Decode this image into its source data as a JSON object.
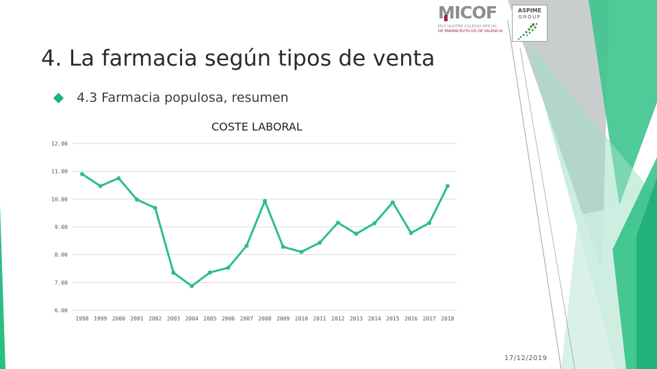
{
  "slide": {
    "title": "4. La farmacia según tipos de venta",
    "subtitle": "4.3 Farmacia populosa, resumen",
    "date": "17/12/2019"
  },
  "logos": {
    "micof": {
      "name": "MICOF",
      "line1": "MUY ILUSTRE COLEGIO OFICIAL",
      "line2": "DE FARMACÉUTICOS DE VALENCIA"
    },
    "aspime": {
      "name": "ASPIME",
      "group": "GROUP"
    }
  },
  "colors": {
    "accent": "#22b07d",
    "series": "#2bbf83",
    "grid": "#d9d9d9",
    "deco_light": "#9fe0c6",
    "deco_gray": "#b7bcbd"
  },
  "chart_data": {
    "type": "line",
    "title": "COSTE LABORAL",
    "x": [
      "1998",
      "1999",
      "2000",
      "2001",
      "2002",
      "2003",
      "2004",
      "2005",
      "2006",
      "2007",
      "2008",
      "2009",
      "2010",
      "2011",
      "2012",
      "2013",
      "2014",
      "2015",
      "2016",
      "2017",
      "2018"
    ],
    "series": [
      {
        "values": [
          10.9,
          10.47,
          10.75,
          9.98,
          9.68,
          7.35,
          6.87,
          7.36,
          7.53,
          8.32,
          9.93,
          8.28,
          8.1,
          8.43,
          9.15,
          8.75,
          9.13,
          9.88,
          8.78,
          9.14,
          10.47
        ]
      }
    ],
    "ylim": [
      6,
      12
    ],
    "yticks": [
      "12.00",
      "11.00",
      "10.00",
      "9.00",
      "8.00",
      "7.00",
      "6.00"
    ],
    "grid": true,
    "legend": "none",
    "markers": true
  }
}
